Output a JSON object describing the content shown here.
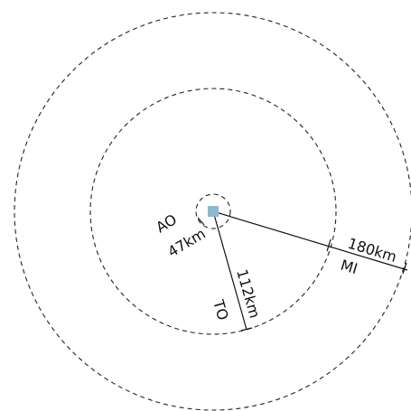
{
  "center_color": "#8fb8d0",
  "zones": [
    {
      "code": "AO",
      "distance_label": "47km"
    },
    {
      "code": "TO",
      "distance_label": "112km"
    },
    {
      "code": "MI",
      "distance_label": "180km"
    }
  ]
}
